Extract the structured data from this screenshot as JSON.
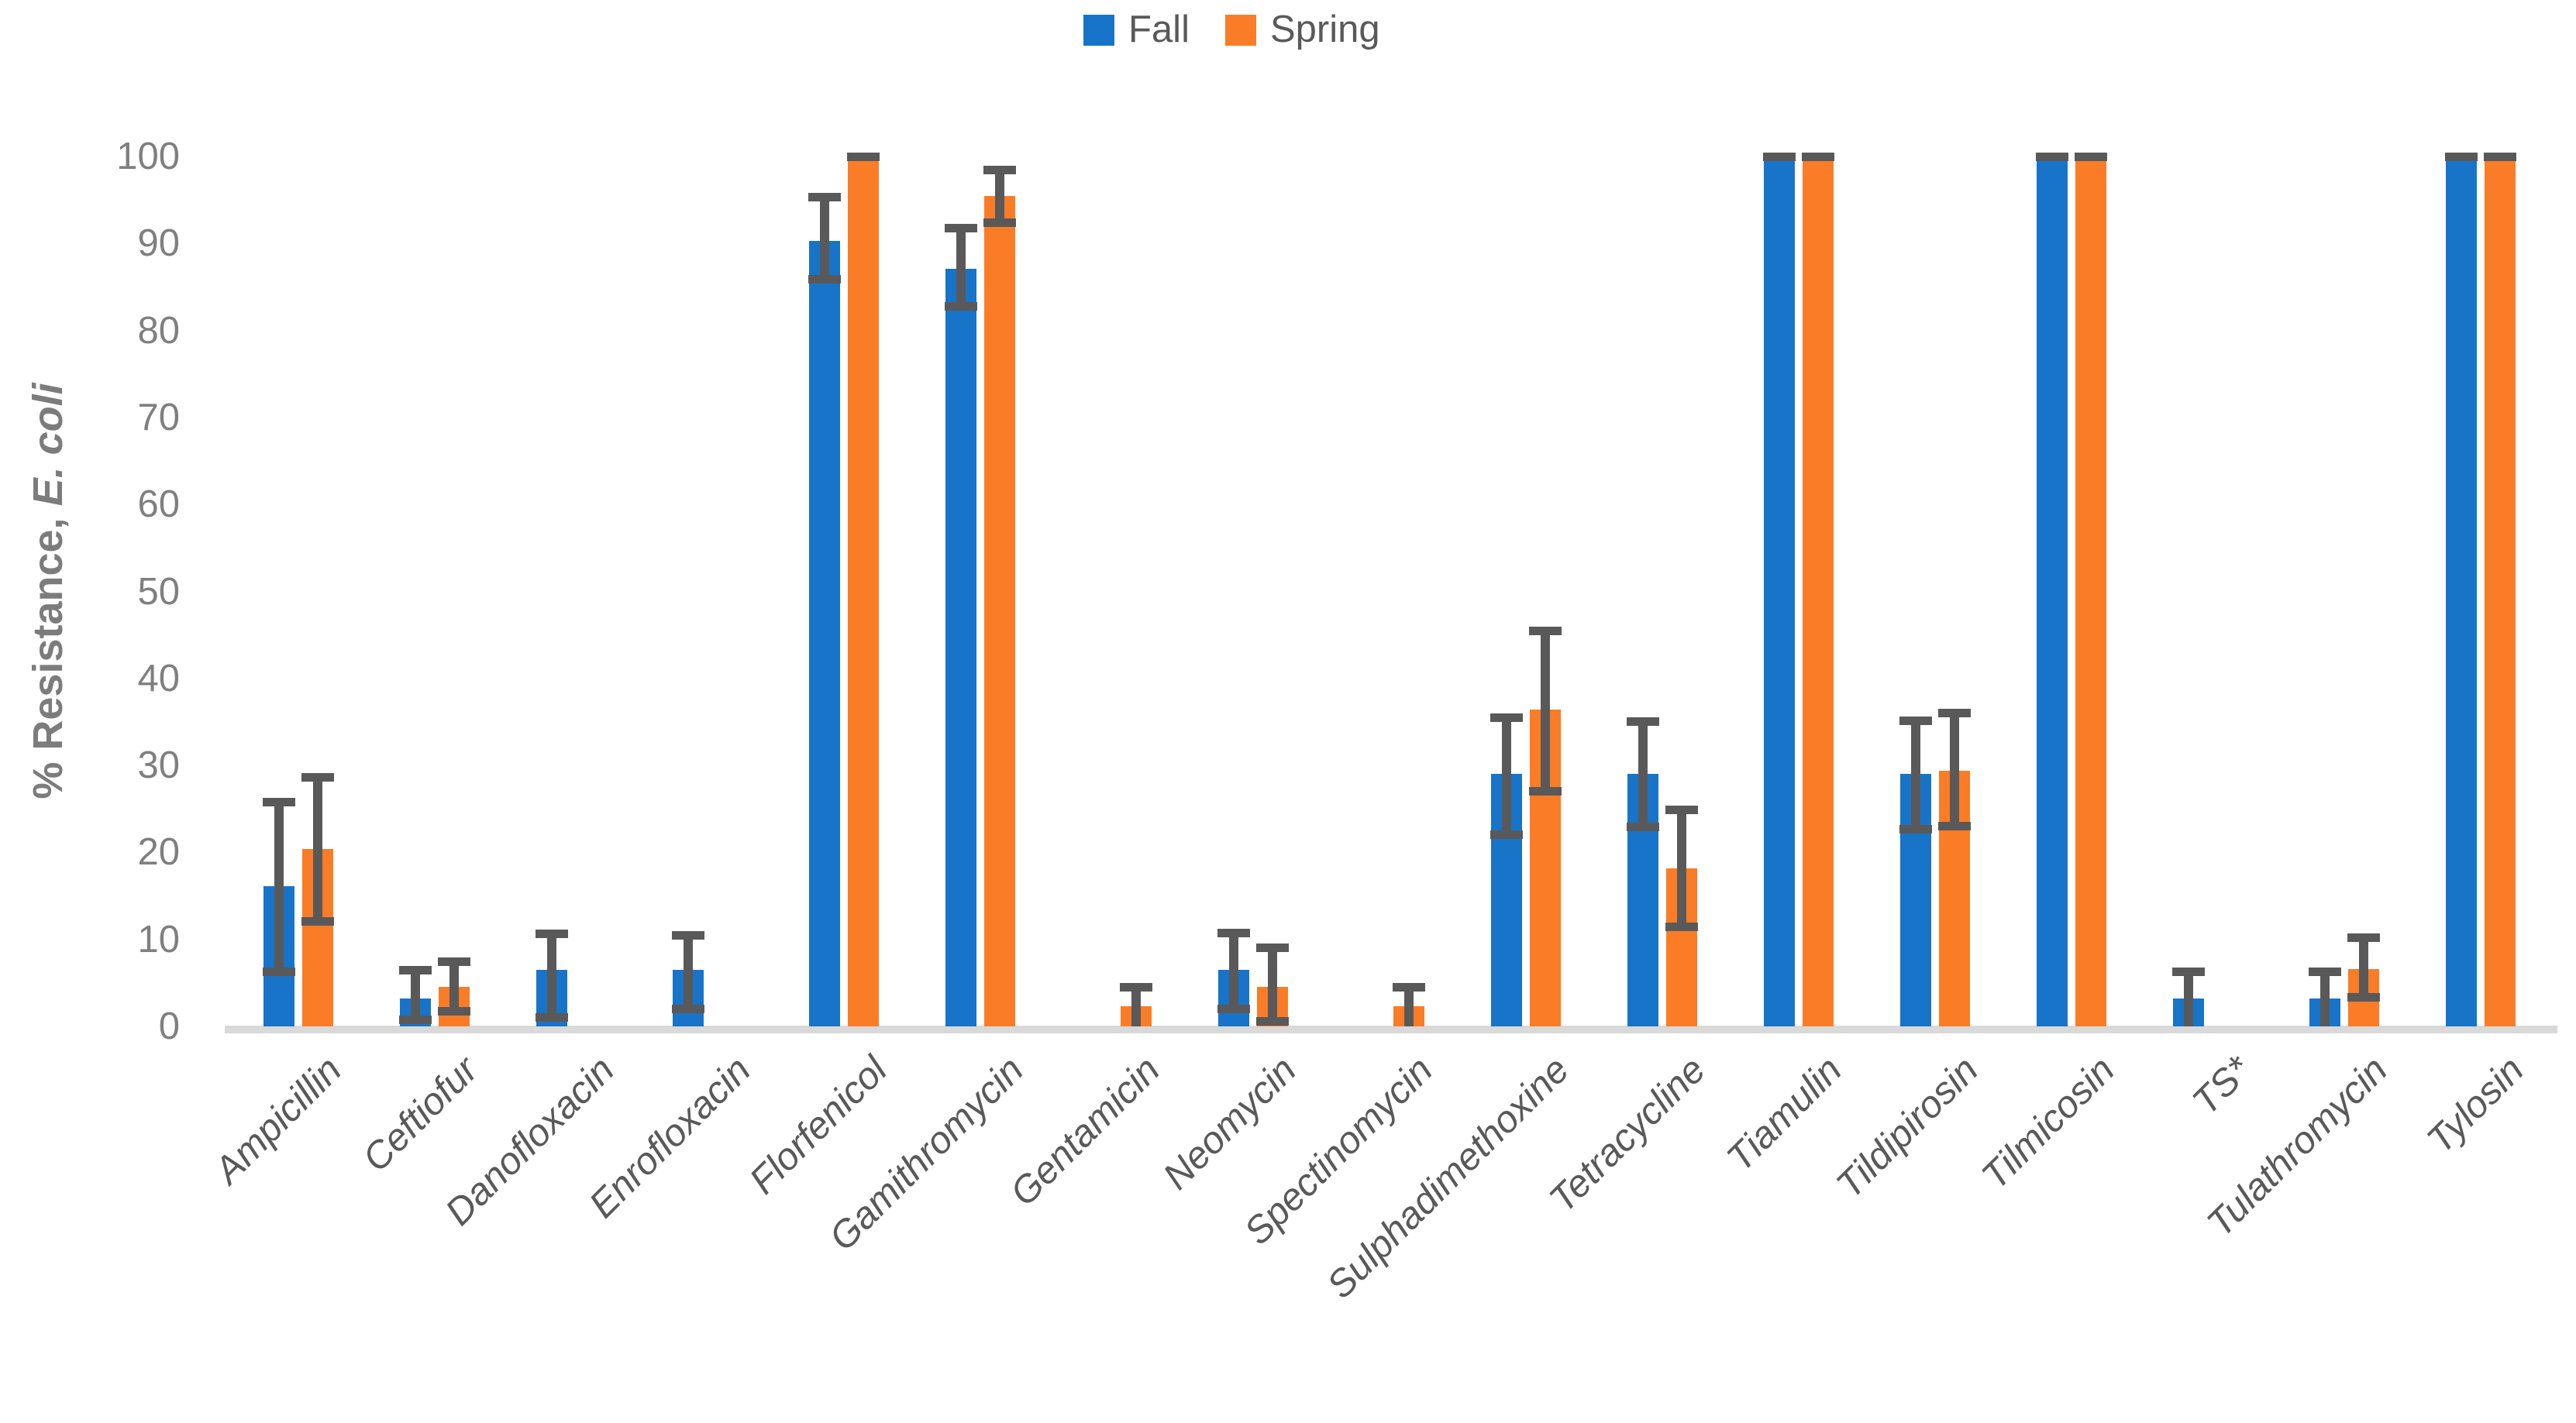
{
  "chart_data": {
    "type": "bar",
    "title": "",
    "ylabel": "% Resistance, E. coli",
    "ylabel_prefix": "% Resistance, ",
    "ylabel_species": "E. coli",
    "xlabel": "",
    "grid": false,
    "legend_position": "top-center",
    "ylim": [
      0,
      100
    ],
    "yticks": [
      0,
      10,
      20,
      30,
      40,
      50,
      60,
      70,
      80,
      90,
      100
    ],
    "categories": [
      "Ampicillin",
      "Ceftiofur",
      "Danofloxacin",
      "Enrofloxacin",
      "Florfenicol",
      "Gamithromycin",
      "Gentamicin",
      "Neomycin",
      "Spectinomycin",
      "Sulphadimethoxine",
      "Tetracycline",
      "Tiamulin",
      "Tildipirosin",
      "Tilmicosin",
      "TS*",
      "Tulathromycin",
      "Tylosin"
    ],
    "series": [
      {
        "name": "Fall",
        "color": "#1774C9",
        "values": [
          16.1,
          3.2,
          6.5,
          6.5,
          90.3,
          87.1,
          0,
          6.5,
          0,
          29.0,
          29.0,
          100,
          29.0,
          100,
          3.2,
          3.2,
          100
        ],
        "err_low": [
          6.3,
          0.8,
          1.0,
          2.0,
          85.9,
          82.8,
          null,
          2.0,
          null,
          22.0,
          22.9,
          100,
          22.7,
          100,
          0,
          0,
          100
        ],
        "err_high": [
          25.8,
          6.5,
          10.6,
          10.5,
          95.3,
          91.8,
          null,
          10.7,
          null,
          35.5,
          35.0,
          100,
          35.1,
          100,
          6.3,
          6.3,
          100
        ]
      },
      {
        "name": "Spring",
        "color": "#FB7C26",
        "values": [
          20.4,
          4.5,
          0,
          0,
          100,
          95.5,
          2.3,
          4.5,
          2.3,
          36.4,
          18.2,
          100,
          29.4,
          100,
          0,
          6.6,
          100
        ],
        "err_low": [
          12.1,
          1.7,
          null,
          null,
          100,
          92.4,
          0,
          0.6,
          0,
          27.0,
          11.4,
          100,
          23.0,
          100,
          null,
          3.3,
          100
        ],
        "err_high": [
          28.6,
          7.4,
          null,
          null,
          100,
          98.4,
          4.5,
          9.0,
          4.5,
          45.5,
          24.9,
          100,
          36.0,
          100,
          null,
          10.2,
          100
        ]
      }
    ],
    "error_bar_color": "#595959",
    "axis_line_color": "#d9d9d9",
    "tick_label_color": "#7f7f7f",
    "category_label_color": "#595959",
    "legend_text_color": "#595959"
  }
}
